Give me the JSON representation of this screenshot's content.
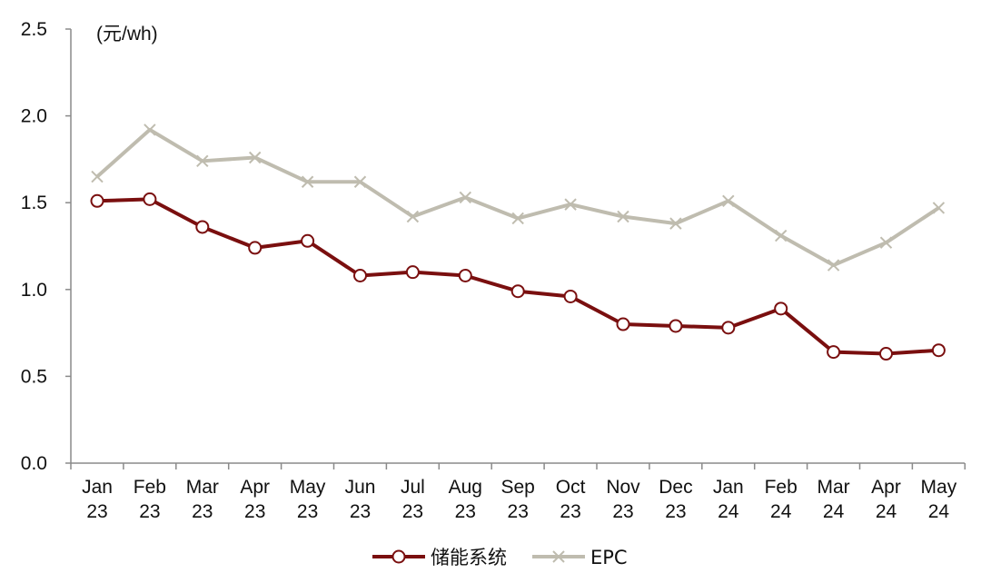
{
  "chart_data": {
    "type": "line",
    "unit_label": "(元/wh)",
    "categories": [
      [
        "Jan",
        "23"
      ],
      [
        "Feb",
        "23"
      ],
      [
        "Mar",
        "23"
      ],
      [
        "Apr",
        "23"
      ],
      [
        "May",
        "23"
      ],
      [
        "Jun",
        "23"
      ],
      [
        "Jul",
        "23"
      ],
      [
        "Aug",
        "23"
      ],
      [
        "Sep",
        "23"
      ],
      [
        "Oct",
        "23"
      ],
      [
        "Nov",
        "23"
      ],
      [
        "Dec",
        "23"
      ],
      [
        "Jan",
        "24"
      ],
      [
        "Feb",
        "24"
      ],
      [
        "Mar",
        "24"
      ],
      [
        "Apr",
        "24"
      ],
      [
        "May",
        "24"
      ]
    ],
    "yticks": [
      "0.0",
      "0.5",
      "1.0",
      "1.5",
      "2.0",
      "2.5"
    ],
    "ylim": [
      0,
      2.5
    ],
    "grid": false,
    "legend_position": "bottom-center",
    "series": [
      {
        "name": "储能系统",
        "color": "#7a0f0f",
        "marker": "circle",
        "values": [
          1.51,
          1.52,
          1.36,
          1.24,
          1.28,
          1.08,
          1.1,
          1.08,
          0.99,
          0.96,
          0.8,
          0.79,
          0.78,
          0.89,
          0.64,
          0.63,
          0.65
        ]
      },
      {
        "name": "EPC",
        "color": "#bfbcaf",
        "marker": "x",
        "values": [
          1.65,
          1.92,
          1.74,
          1.76,
          1.62,
          1.62,
          1.42,
          1.53,
          1.41,
          1.49,
          1.42,
          1.38,
          1.51,
          1.31,
          1.14,
          1.27,
          1.47
        ]
      }
    ]
  }
}
